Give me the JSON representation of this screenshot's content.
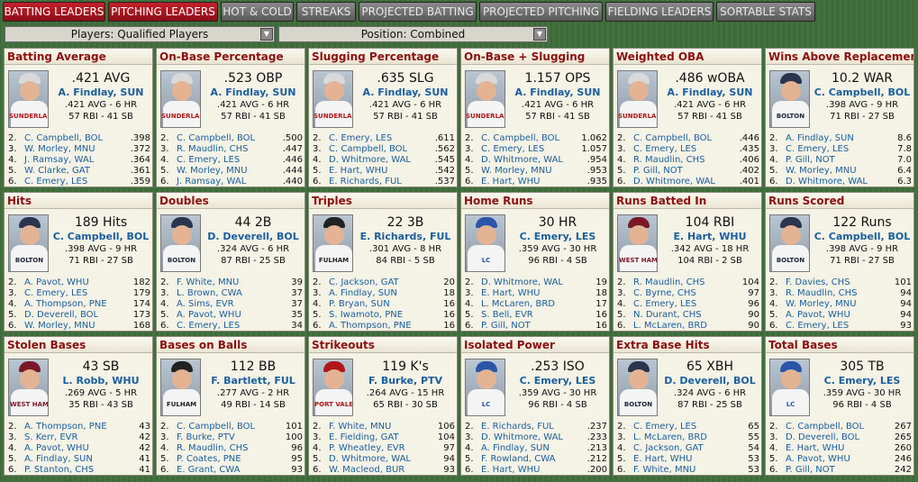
{
  "tabs": [
    {
      "label": "BATTING LEADERS",
      "active": true
    },
    {
      "label": "PITCHING LEADERS",
      "active": true
    },
    {
      "label": "HOT & COLD",
      "active": false
    },
    {
      "label": "STREAKS",
      "active": false
    },
    {
      "label": "PROJECTED BATTING",
      "active": false
    },
    {
      "label": "PROJECTED PITCHING",
      "active": false
    },
    {
      "label": "FIELDING LEADERS",
      "active": false
    },
    {
      "label": "SORTABLE STATS",
      "active": false
    }
  ],
  "filters": {
    "players": "Players: Qualified Players",
    "position": "Position: Combined"
  },
  "colors": {
    "accent_red": "#c4202a",
    "title_red": "#8b1010",
    "link_blue": "#1a5f9e"
  },
  "cards": [
    {
      "title": "Batting Average",
      "value": ".421 AVG",
      "player": "A. Findlay, SUN",
      "line1": ".421 AVG - 6 HR",
      "line2": "57 RBI - 41 SB",
      "team": "SUN",
      "leaders": [
        {
          "rank": "2.",
          "name": "C. Campbell, BOL",
          "value": ".398"
        },
        {
          "rank": "3.",
          "name": "W. Morley, MNU",
          "value": ".372"
        },
        {
          "rank": "4.",
          "name": "J. Ramsay, WAL",
          "value": ".364"
        },
        {
          "rank": "5.",
          "name": "W. Clarke, GAT",
          "value": ".361"
        },
        {
          "rank": "6.",
          "name": "C. Emery, LES",
          "value": ".359"
        }
      ]
    },
    {
      "title": "On-Base Percentage",
      "value": ".523 OBP",
      "player": "A. Findlay, SUN",
      "line1": ".421 AVG - 6 HR",
      "line2": "57 RBI - 41 SB",
      "team": "SUN",
      "leaders": [
        {
          "rank": "2.",
          "name": "C. Campbell, BOL",
          "value": ".500"
        },
        {
          "rank": "3.",
          "name": "R. Maudlin, CHS",
          "value": ".447"
        },
        {
          "rank": "4.",
          "name": "C. Emery, LES",
          "value": ".446"
        },
        {
          "rank": "5.",
          "name": "W. Morley, MNU",
          "value": ".444"
        },
        {
          "rank": "6.",
          "name": "J. Ramsay, WAL",
          "value": ".440"
        }
      ]
    },
    {
      "title": "Slugging Percentage",
      "value": ".635 SLG",
      "player": "A. Findlay, SUN",
      "line1": ".421 AVG - 6 HR",
      "line2": "57 RBI - 41 SB",
      "team": "SUN",
      "leaders": [
        {
          "rank": "2.",
          "name": "C. Emery, LES",
          "value": ".611"
        },
        {
          "rank": "3.",
          "name": "C. Campbell, BOL",
          "value": ".562"
        },
        {
          "rank": "4.",
          "name": "D. Whitmore, WAL",
          "value": ".545"
        },
        {
          "rank": "5.",
          "name": "E. Hart, WHU",
          "value": ".542"
        },
        {
          "rank": "6.",
          "name": "E. Richards, FUL",
          "value": ".537"
        }
      ]
    },
    {
      "title": "On-Base + Slugging",
      "value": "1.157 OPS",
      "player": "A. Findlay, SUN",
      "line1": ".421 AVG - 6 HR",
      "line2": "57 RBI - 41 SB",
      "team": "SUN",
      "leaders": [
        {
          "rank": "2.",
          "name": "C. Campbell, BOL",
          "value": "1.062"
        },
        {
          "rank": "3.",
          "name": "C. Emery, LES",
          "value": "1.057"
        },
        {
          "rank": "4.",
          "name": "D. Whitmore, WAL",
          "value": ".954"
        },
        {
          "rank": "5.",
          "name": "W. Morley, MNU",
          "value": ".953"
        },
        {
          "rank": "6.",
          "name": "E. Hart, WHU",
          "value": ".935"
        }
      ]
    },
    {
      "title": "Weighted OBA",
      "value": ".486 wOBA",
      "player": "A. Findlay, SUN",
      "line1": ".421 AVG - 6 HR",
      "line2": "57 RBI - 41 SB",
      "team": "SUN",
      "leaders": [
        {
          "rank": "2.",
          "name": "C. Campbell, BOL",
          "value": ".446"
        },
        {
          "rank": "3.",
          "name": "C. Emery, LES",
          "value": ".435"
        },
        {
          "rank": "4.",
          "name": "R. Maudlin, CHS",
          "value": ".406"
        },
        {
          "rank": "5.",
          "name": "P. Gill, NOT",
          "value": ".402"
        },
        {
          "rank": "6.",
          "name": "D. Whitmore, WAL",
          "value": ".401"
        }
      ]
    },
    {
      "title": "Wins Above Replacement",
      "value": "10.2 WAR",
      "player": "C. Campbell, BOL",
      "line1": ".398 AVG - 9 HR",
      "line2": "71 RBI - 27 SB",
      "team": "BOL",
      "leaders": [
        {
          "rank": "2.",
          "name": "A. Findlay, SUN",
          "value": "8.6"
        },
        {
          "rank": "3.",
          "name": "C. Emery, LES",
          "value": "7.8"
        },
        {
          "rank": "4.",
          "name": "P. Gill, NOT",
          "value": "7.0"
        },
        {
          "rank": "5.",
          "name": "W. Morley, MNU",
          "value": "6.4"
        },
        {
          "rank": "6.",
          "name": "D. Whitmore, WAL",
          "value": "6.3"
        }
      ]
    },
    {
      "title": "Hits",
      "value": "189 Hits",
      "player": "C. Campbell, BOL",
      "line1": ".398 AVG - 9 HR",
      "line2": "71 RBI - 27 SB",
      "team": "BOL",
      "leaders": [
        {
          "rank": "2.",
          "name": "A. Pavot, WHU",
          "value": "182"
        },
        {
          "rank": "3.",
          "name": "C. Emery, LES",
          "value": "179"
        },
        {
          "rank": "4.",
          "name": "A. Thompson, PNE",
          "value": "174"
        },
        {
          "rank": "5.",
          "name": "D. Deverell, BOL",
          "value": "173"
        },
        {
          "rank": "6.",
          "name": "W. Morley, MNU",
          "value": "168"
        }
      ]
    },
    {
      "title": "Doubles",
      "value": "44 2B",
      "player": "D. Deverell, BOL",
      "line1": ".324 AVG - 6 HR",
      "line2": "87 RBI - 25 SB",
      "team": "BOL",
      "leaders": [
        {
          "rank": "2.",
          "name": "F. White, MNU",
          "value": "39"
        },
        {
          "rank": "3.",
          "name": "L. Brown, CWA",
          "value": "37"
        },
        {
          "rank": "4.",
          "name": "A. Sims, EVR",
          "value": "37"
        },
        {
          "rank": "5.",
          "name": "A. Pavot, WHU",
          "value": "35"
        },
        {
          "rank": "6.",
          "name": "C. Emery, LES",
          "value": "34"
        }
      ]
    },
    {
      "title": "Triples",
      "value": "22 3B",
      "player": "E. Richards, FUL",
      "line1": ".301 AVG - 8 HR",
      "line2": "84 RBI - 5 SB",
      "team": "FUL",
      "leaders": [
        {
          "rank": "2.",
          "name": "C. Jackson, GAT",
          "value": "20"
        },
        {
          "rank": "3.",
          "name": "A. Findlay, SUN",
          "value": "18"
        },
        {
          "rank": "4.",
          "name": "P. Bryan, SUN",
          "value": "16"
        },
        {
          "rank": "5.",
          "name": "S. Iwamoto, PNE",
          "value": "16"
        },
        {
          "rank": "6.",
          "name": "A. Thompson, PNE",
          "value": "16"
        }
      ]
    },
    {
      "title": "Home Runs",
      "value": "30 HR",
      "player": "C. Emery, LES",
      "line1": ".359 AVG - 30 HR",
      "line2": "96 RBI - 4 SB",
      "team": "LES",
      "leaders": [
        {
          "rank": "2.",
          "name": "D. Whitmore, WAL",
          "value": "19"
        },
        {
          "rank": "3.",
          "name": "E. Hart, WHU",
          "value": "18"
        },
        {
          "rank": "4.",
          "name": "L. McLaren, BRD",
          "value": "17"
        },
        {
          "rank": "5.",
          "name": "S. Bell, EVR",
          "value": "16"
        },
        {
          "rank": "6.",
          "name": "P. Gill, NOT",
          "value": "16"
        }
      ]
    },
    {
      "title": "Runs Batted In",
      "value": "104 RBI",
      "player": "E. Hart, WHU",
      "line1": ".342 AVG - 18 HR",
      "line2": "104 RBI - 2 SB",
      "team": "WHU",
      "leaders": [
        {
          "rank": "2.",
          "name": "R. Maudlin, CHS",
          "value": "104"
        },
        {
          "rank": "3.",
          "name": "C. Byrne, CHS",
          "value": "97"
        },
        {
          "rank": "4.",
          "name": "C. Emery, LES",
          "value": "96"
        },
        {
          "rank": "5.",
          "name": "N. Durant, CHS",
          "value": "90"
        },
        {
          "rank": "6.",
          "name": "L. McLaren, BRD",
          "value": "90"
        }
      ]
    },
    {
      "title": "Runs Scored",
      "value": "122 Runs",
      "player": "C. Campbell, BOL",
      "line1": ".398 AVG - 9 HR",
      "line2": "71 RBI - 27 SB",
      "team": "BOL",
      "leaders": [
        {
          "rank": "2.",
          "name": "F. Davies, CHS",
          "value": "101"
        },
        {
          "rank": "3.",
          "name": "R. Maudlin, CHS",
          "value": "94"
        },
        {
          "rank": "4.",
          "name": "W. Morley, MNU",
          "value": "94"
        },
        {
          "rank": "5.",
          "name": "A. Pavot, WHU",
          "value": "94"
        },
        {
          "rank": "6.",
          "name": "C. Emery, LES",
          "value": "93"
        }
      ]
    },
    {
      "title": "Stolen Bases",
      "value": "43 SB",
      "player": "L. Robb, WHU",
      "line1": ".269 AVG - 5 HR",
      "line2": "35 RBI - 43 SB",
      "team": "WHU",
      "leaders": [
        {
          "rank": "2.",
          "name": "A. Thompson, PNE",
          "value": "43"
        },
        {
          "rank": "3.",
          "name": "S. Kerr, EVR",
          "value": "42"
        },
        {
          "rank": "4.",
          "name": "A. Pavot, WHU",
          "value": "42"
        },
        {
          "rank": "5.",
          "name": "A. Findlay, SUN",
          "value": "41"
        },
        {
          "rank": "6.",
          "name": "P. Stanton, CHS",
          "value": "41"
        }
      ]
    },
    {
      "title": "Bases on Balls",
      "value": "112 BB",
      "player": "F. Bartlett, FUL",
      "line1": ".277 AVG - 2 HR",
      "line2": "49 RBI - 14 SB",
      "team": "FUL",
      "leaders": [
        {
          "rank": "2.",
          "name": "C. Campbell, BOL",
          "value": "101"
        },
        {
          "rank": "3.",
          "name": "F. Burke, PTV",
          "value": "100"
        },
        {
          "rank": "4.",
          "name": "R. Maudlin, CHS",
          "value": "96"
        },
        {
          "rank": "5.",
          "name": "P. Coates, PNE",
          "value": "95"
        },
        {
          "rank": "6.",
          "name": "E. Grant, CWA",
          "value": "93"
        }
      ]
    },
    {
      "title": "Strikeouts",
      "value": "119 K's",
      "player": "F. Burke, PTV",
      "line1": ".264 AVG - 15 HR",
      "line2": "65 RBI - 30 SB",
      "team": "PTV",
      "leaders": [
        {
          "rank": "2.",
          "name": "F. White, MNU",
          "value": "106"
        },
        {
          "rank": "3.",
          "name": "E. Fielding, GAT",
          "value": "104"
        },
        {
          "rank": "4.",
          "name": "P. Wheatley, EVR",
          "value": "97"
        },
        {
          "rank": "5.",
          "name": "D. Whitmore, WAL",
          "value": "94"
        },
        {
          "rank": "6.",
          "name": "W. Macleod, BUR",
          "value": "93"
        }
      ]
    },
    {
      "title": "Isolated Power",
      "value": ".253 ISO",
      "player": "C. Emery, LES",
      "line1": ".359 AVG - 30 HR",
      "line2": "96 RBI - 4 SB",
      "team": "LES",
      "leaders": [
        {
          "rank": "2.",
          "name": "E. Richards, FUL",
          "value": ".237"
        },
        {
          "rank": "3.",
          "name": "D. Whitmore, WAL",
          "value": ".233"
        },
        {
          "rank": "4.",
          "name": "A. Findlay, SUN",
          "value": ".213"
        },
        {
          "rank": "5.",
          "name": "F. Rowland, CWA",
          "value": ".212"
        },
        {
          "rank": "6.",
          "name": "E. Hart, WHU",
          "value": ".200"
        }
      ]
    },
    {
      "title": "Extra Base Hits",
      "value": "65 XBH",
      "player": "D. Deverell, BOL",
      "line1": ".324 AVG - 6 HR",
      "line2": "87 RBI - 25 SB",
      "team": "BOL",
      "leaders": [
        {
          "rank": "2.",
          "name": "C. Emery, LES",
          "value": "65"
        },
        {
          "rank": "3.",
          "name": "L. McLaren, BRD",
          "value": "55"
        },
        {
          "rank": "4.",
          "name": "C. Jackson, GAT",
          "value": "54"
        },
        {
          "rank": "5.",
          "name": "E. Hart, WHU",
          "value": "53"
        },
        {
          "rank": "6.",
          "name": "F. White, MNU",
          "value": "53"
        }
      ]
    },
    {
      "title": "Total Bases",
      "value": "305 TB",
      "player": "C. Emery, LES",
      "line1": ".359 AVG - 30 HR",
      "line2": "96 RBI - 4 SB",
      "team": "LES",
      "leaders": [
        {
          "rank": "2.",
          "name": "C. Campbell, BOL",
          "value": "267"
        },
        {
          "rank": "3.",
          "name": "D. Deverell, BOL",
          "value": "265"
        },
        {
          "rank": "4.",
          "name": "E. Hart, WHU",
          "value": "260"
        },
        {
          "rank": "5.",
          "name": "A. Pavot, WHU",
          "value": "246"
        },
        {
          "rank": "6.",
          "name": "P. Gill, NOT",
          "value": "242"
        }
      ]
    }
  ],
  "uniforms": {
    "SUN": {
      "cap": "#d9d9d9",
      "word": "SUNDERLAND",
      "wordColor": "#b01818"
    },
    "BOL": {
      "cap": "#2b3550",
      "word": "BOLTON",
      "wordColor": "#1c2438"
    },
    "FUL": {
      "cap": "#222222",
      "word": "FULHAM",
      "wordColor": "#222222"
    },
    "LES": {
      "cap": "#2a55a8",
      "word": "LC",
      "wordColor": "#2a55a8"
    },
    "WHU": {
      "cap": "#7a1828",
      "word": "WEST HAM",
      "wordColor": "#7a1828"
    },
    "PTV": {
      "cap": "#b01818",
      "word": "PORT VALE",
      "wordColor": "#b01818"
    }
  }
}
